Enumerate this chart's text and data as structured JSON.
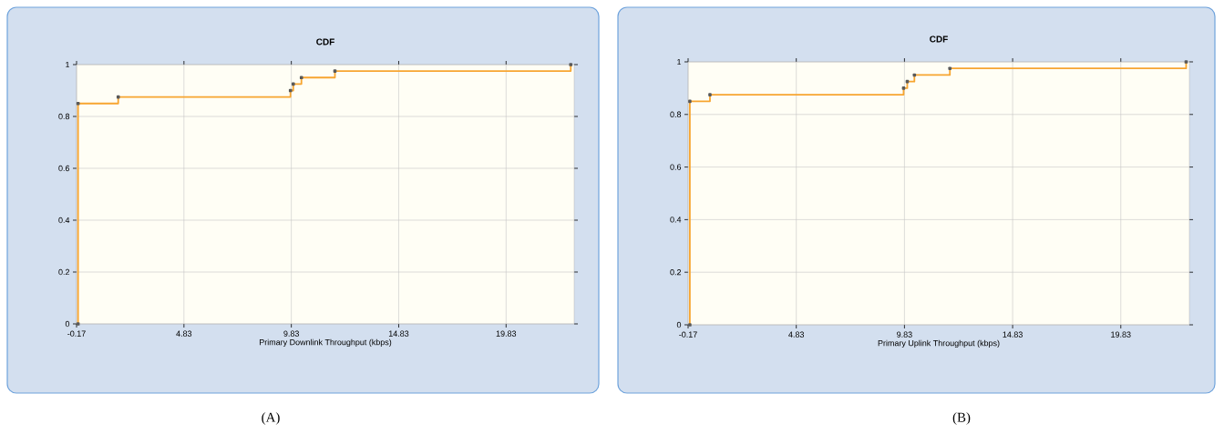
{
  "chart_data": [
    {
      "type": "step",
      "title": "CDF",
      "xlabel": "Primary Downlink Throughput (kbps)",
      "x": [
        -0.1,
        -0.1,
        1.77,
        9.79,
        9.92,
        10.3,
        11.86,
        22.84
      ],
      "series": [
        {
          "color": "#f7a530",
          "values": [
            0,
            0.85,
            0.875,
            0.9,
            0.925,
            0.95,
            0.975,
            1.0
          ]
        }
      ],
      "xlim": [
        -0.17,
        23
      ],
      "xticks": [
        -0.17,
        4.83,
        9.83,
        14.83,
        19.83
      ],
      "ylim": [
        0,
        1
      ],
      "yticks": [
        0,
        0.2,
        0.4,
        0.6,
        0.8,
        1
      ],
      "grid": true,
      "marker": "square",
      "annotations": [
        "(A)"
      ]
    },
    {
      "type": "step",
      "title": "CDF",
      "xlabel": "Primary Uplink Throughput (kbps)",
      "x": [
        -0.09,
        -0.09,
        0.84,
        9.79,
        9.96,
        10.29,
        11.93,
        22.85
      ],
      "series": [
        {
          "color": "#f7a530",
          "values": [
            0,
            0.85,
            0.875,
            0.9,
            0.925,
            0.95,
            0.975,
            1.0
          ]
        }
      ],
      "xlim": [
        -0.17,
        23
      ],
      "xticks": [
        -0.17,
        4.83,
        9.83,
        14.83,
        19.83
      ],
      "ylim": [
        0,
        1
      ],
      "yticks": [
        0,
        0.2,
        0.4,
        0.6,
        0.8,
        1
      ],
      "grid": true,
      "marker": "square",
      "annotations": [
        "(B)"
      ]
    }
  ]
}
